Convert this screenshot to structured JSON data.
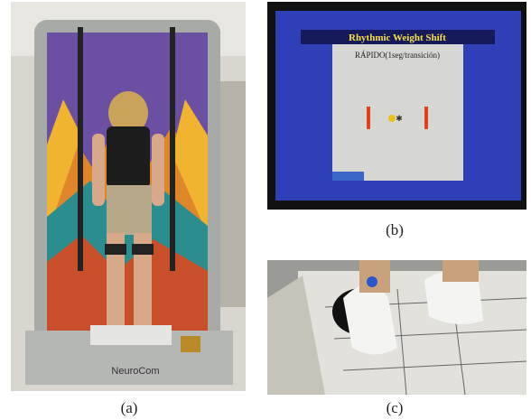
{
  "panels": [
    {
      "label": "(a)",
      "brand": "NeuroCom"
    },
    {
      "label": "(b)",
      "screen_title": "Rhythmic Weight Shift",
      "screen_subtitle": "RÁPIDO(1seg/transición)"
    },
    {
      "label": "(c)"
    }
  ]
}
